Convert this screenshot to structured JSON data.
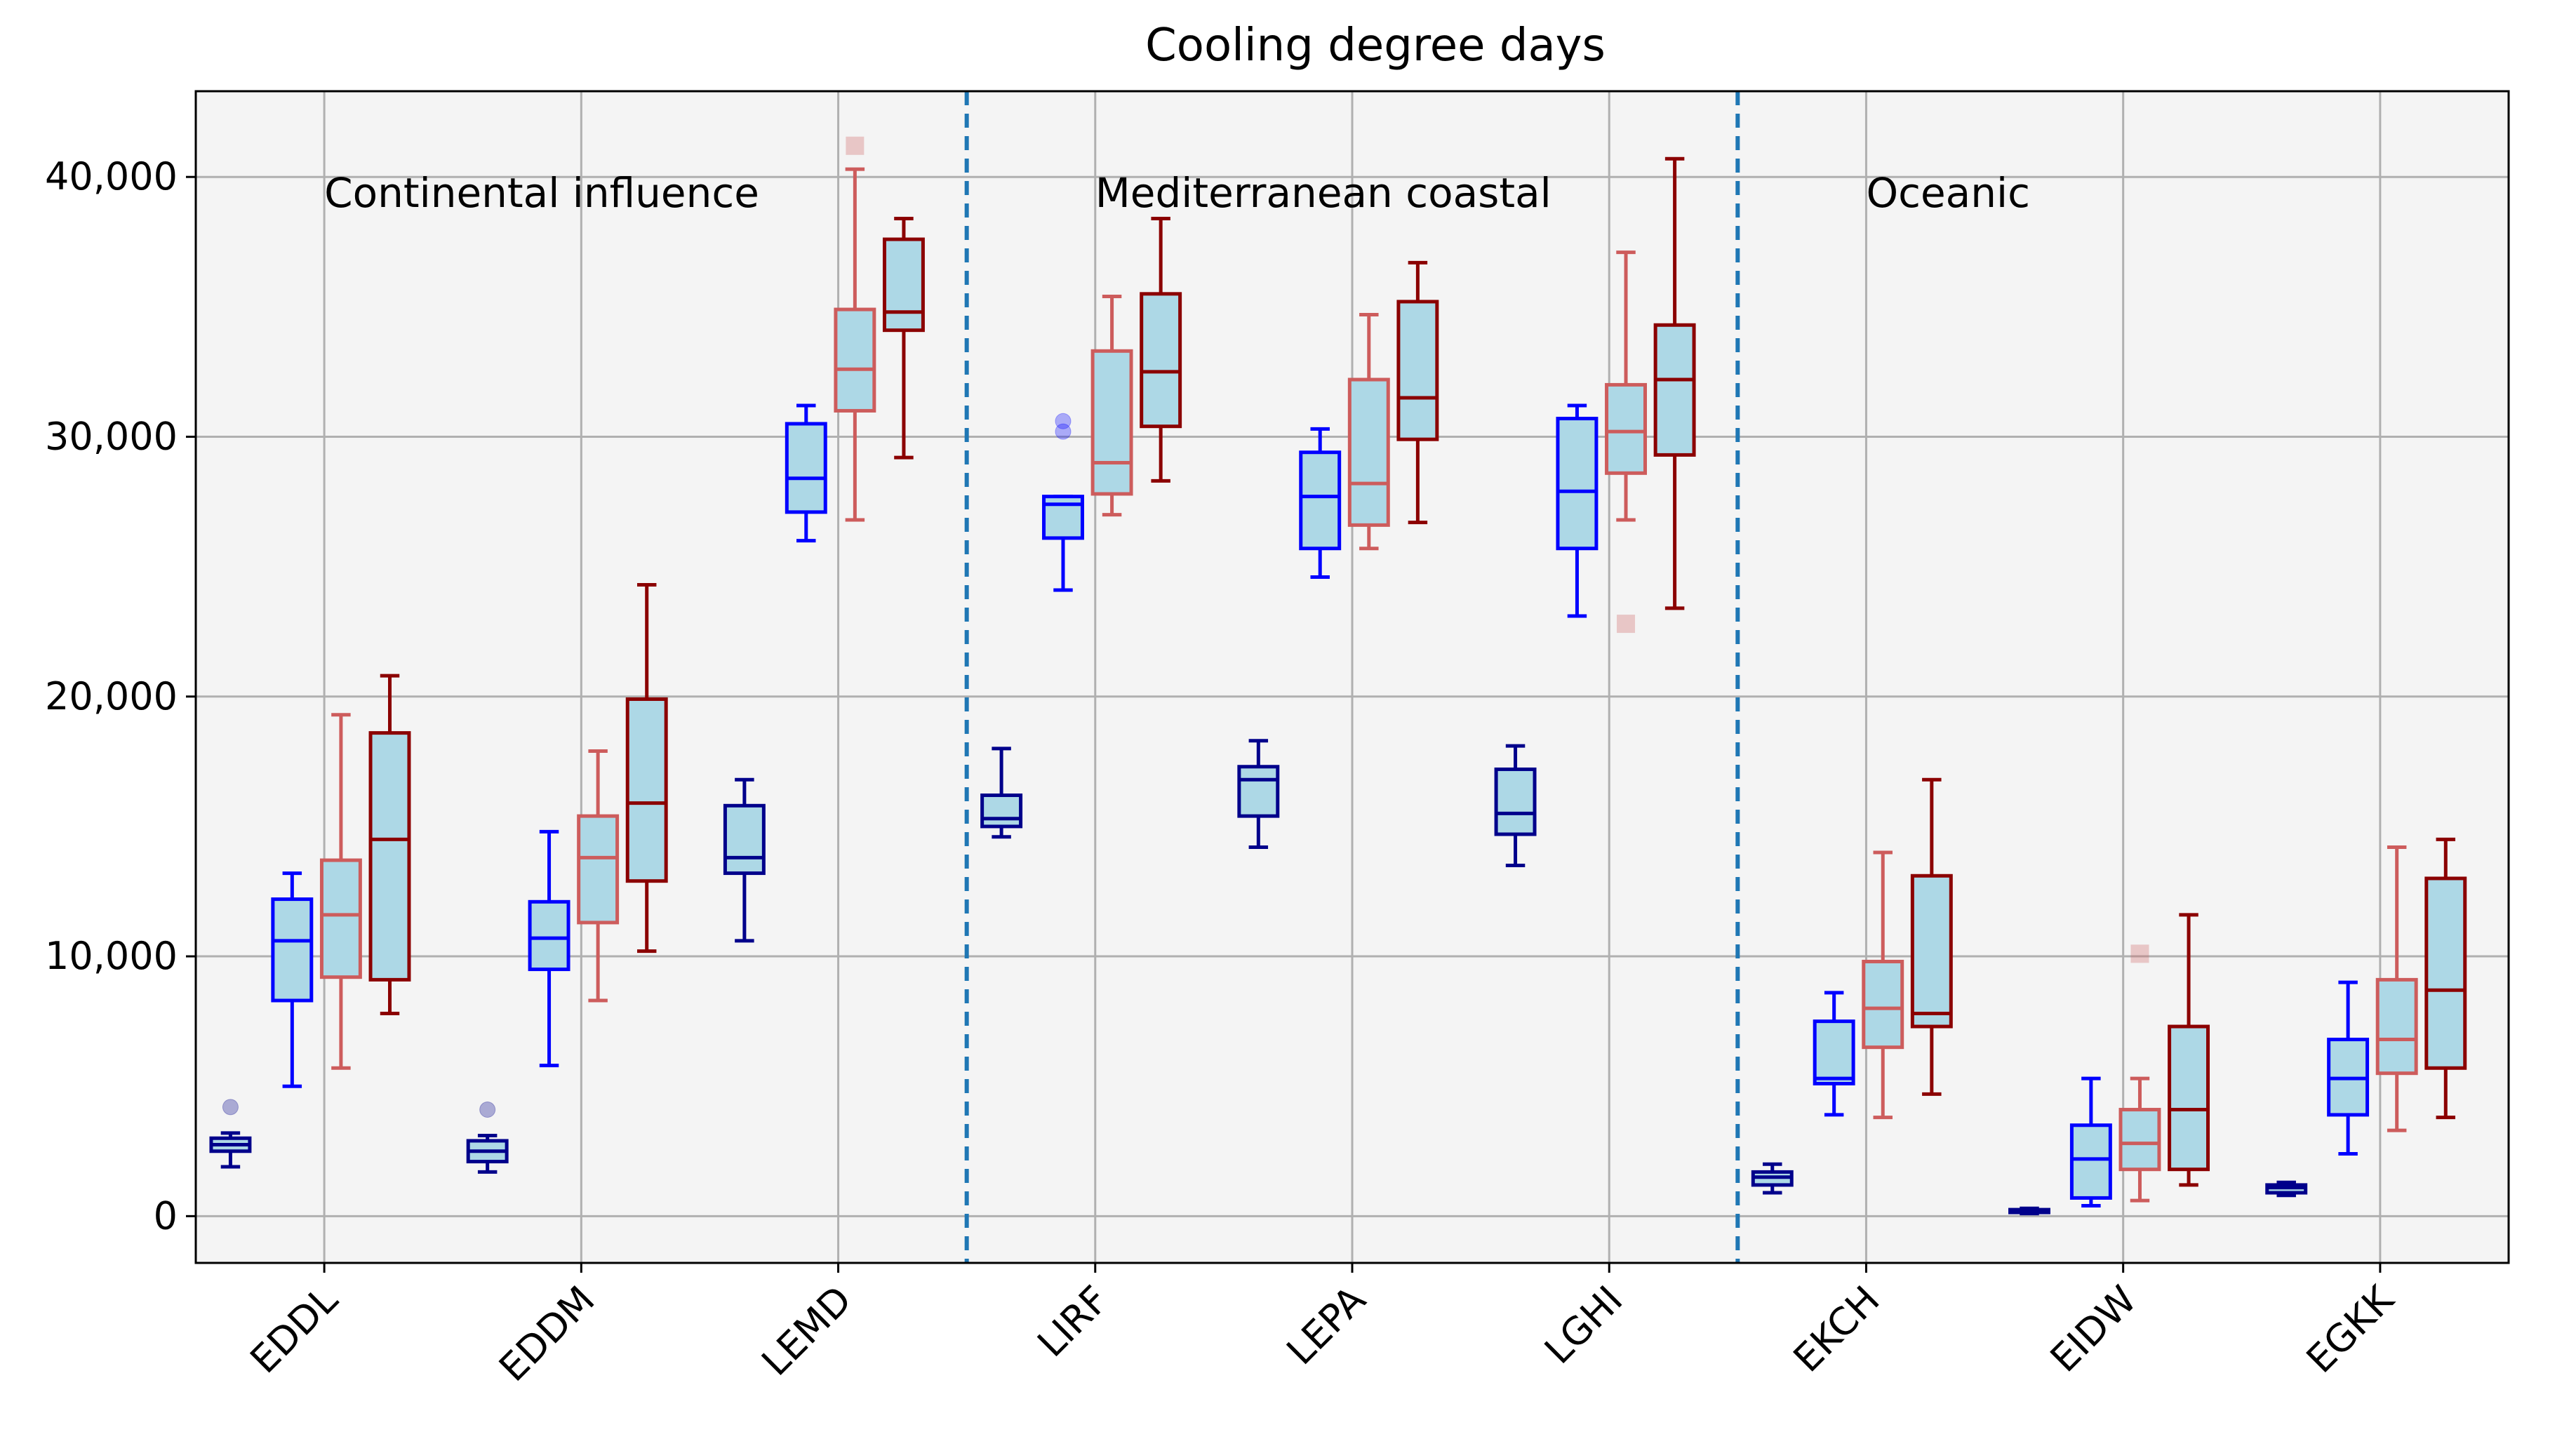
{
  "chart_data": {
    "type": "box",
    "title": "Cooling degree days",
    "xlabel": "",
    "ylabel": "",
    "ylim": [
      -1800,
      43300
    ],
    "yticks": [
      0,
      10000,
      20000,
      30000,
      40000
    ],
    "ytick_labels": [
      "0",
      "10,000",
      "20,000",
      "30,000",
      "40,000"
    ],
    "grid": true,
    "categories": [
      "EDDL",
      "EDDM",
      "LEMD",
      "LIRF",
      "LEPA",
      "LGHI",
      "EKCH",
      "EIDW",
      "EGKK"
    ],
    "regions": [
      {
        "label": "Continental influence",
        "start_index": 0,
        "end_index": 2
      },
      {
        "label": "Mediterranean coastal",
        "start_index": 3,
        "end_index": 5
      },
      {
        "label": "Oceanic",
        "start_index": 6,
        "end_index": 8
      }
    ],
    "region_separators_after_index": [
      2,
      5
    ],
    "series_styles": [
      {
        "color": "#00008b"
      },
      {
        "color": "#0000ff"
      },
      {
        "color": "#cd5c5c"
      },
      {
        "color": "#8b0000"
      }
    ],
    "box_fill": "#add8e6",
    "separator_color": "#1f77b4",
    "boxes": [
      [
        {
          "whislo": 1900,
          "q1": 2500,
          "med": 2750,
          "q3": 3000,
          "whishi": 3200,
          "fliers": [
            4200
          ]
        },
        {
          "whislo": 5000,
          "q1": 8300,
          "med": 10600,
          "q3": 12200,
          "whishi": 13200,
          "fliers": []
        },
        {
          "whislo": 5700,
          "q1": 9200,
          "med": 11600,
          "q3": 13700,
          "whishi": 19300,
          "fliers": []
        },
        {
          "whislo": 7800,
          "q1": 9100,
          "med": 14500,
          "q3": 18600,
          "whishi": 20800,
          "fliers": []
        }
      ],
      [
        {
          "whislo": 1700,
          "q1": 2100,
          "med": 2500,
          "q3": 2900,
          "whishi": 3100,
          "fliers": [
            4100
          ]
        },
        {
          "whislo": 5800,
          "q1": 9500,
          "med": 10700,
          "q3": 12100,
          "whishi": 14800,
          "fliers": []
        },
        {
          "whislo": 8300,
          "q1": 11300,
          "med": 13800,
          "q3": 15400,
          "whishi": 17900,
          "fliers": []
        },
        {
          "whislo": 10200,
          "q1": 12900,
          "med": 15900,
          "q3": 19900,
          "whishi": 24300,
          "fliers": []
        }
      ],
      [
        {
          "whislo": 10600,
          "q1": 13200,
          "med": 13800,
          "q3": 15800,
          "whishi": 16800,
          "fliers": []
        },
        {
          "whislo": 26000,
          "q1": 27100,
          "med": 28400,
          "q3": 30500,
          "whishi": 31200,
          "fliers": []
        },
        {
          "whislo": 26800,
          "q1": 31000,
          "med": 32600,
          "q3": 34900,
          "whishi": 40300,
          "fliers": [
            41200
          ]
        },
        {
          "whislo": 29200,
          "q1": 34100,
          "med": 34800,
          "q3": 37600,
          "whishi": 38400,
          "fliers": []
        }
      ],
      [
        {
          "whislo": 14600,
          "q1": 15000,
          "med": 15300,
          "q3": 16200,
          "whishi": 18000,
          "fliers": []
        },
        {
          "whislo": 24100,
          "q1": 26100,
          "med": 27400,
          "q3": 27700,
          "whishi": 27700,
          "fliers": [
            30200,
            30600
          ]
        },
        {
          "whislo": 27000,
          "q1": 27800,
          "med": 29000,
          "q3": 33300,
          "whishi": 35400,
          "fliers": []
        },
        {
          "whislo": 28300,
          "q1": 30400,
          "med": 32500,
          "q3": 35500,
          "whishi": 38400,
          "fliers": []
        }
      ],
      [
        {
          "whislo": 14200,
          "q1": 15400,
          "med": 16800,
          "q3": 17300,
          "whishi": 18300,
          "fliers": []
        },
        {
          "whislo": 24600,
          "q1": 25700,
          "med": 27700,
          "q3": 29400,
          "whishi": 30300,
          "fliers": []
        },
        {
          "whislo": 25700,
          "q1": 26600,
          "med": 28200,
          "q3": 32200,
          "whishi": 34700,
          "fliers": []
        },
        {
          "whislo": 26700,
          "q1": 29900,
          "med": 31500,
          "q3": 35200,
          "whishi": 36700,
          "fliers": []
        }
      ],
      [
        {
          "whislo": 13500,
          "q1": 14700,
          "med": 15500,
          "q3": 17200,
          "whishi": 18100,
          "fliers": []
        },
        {
          "whislo": 23100,
          "q1": 25700,
          "med": 27900,
          "q3": 30700,
          "whishi": 31200,
          "fliers": []
        },
        {
          "whislo": 26800,
          "q1": 28600,
          "med": 30200,
          "q3": 32000,
          "whishi": 37100,
          "fliers": [
            22800
          ]
        },
        {
          "whislo": 23400,
          "q1": 29300,
          "med": 32200,
          "q3": 34300,
          "whishi": 40700,
          "fliers": []
        }
      ],
      [
        {
          "whislo": 900,
          "q1": 1200,
          "med": 1500,
          "q3": 1700,
          "whishi": 2000,
          "fliers": []
        },
        {
          "whislo": 3900,
          "q1": 5100,
          "med": 5300,
          "q3": 7500,
          "whishi": 8600,
          "fliers": []
        },
        {
          "whislo": 3800,
          "q1": 6500,
          "med": 8000,
          "q3": 9800,
          "whishi": 14000,
          "fliers": []
        },
        {
          "whislo": 4700,
          "q1": 7300,
          "med": 7800,
          "q3": 13100,
          "whishi": 16800,
          "fliers": []
        }
      ],
      [
        {
          "whislo": 100,
          "q1": 150,
          "med": 200,
          "q3": 250,
          "whishi": 300,
          "fliers": []
        },
        {
          "whislo": 400,
          "q1": 700,
          "med": 2200,
          "q3": 3500,
          "whishi": 5300,
          "fliers": []
        },
        {
          "whislo": 600,
          "q1": 1800,
          "med": 2800,
          "q3": 4100,
          "whishi": 5300,
          "fliers": [
            10100
          ]
        },
        {
          "whislo": 1200,
          "q1": 1800,
          "med": 4100,
          "q3": 7300,
          "whishi": 11600,
          "fliers": []
        }
      ],
      [
        {
          "whislo": 800,
          "q1": 900,
          "med": 1100,
          "q3": 1200,
          "whishi": 1300,
          "fliers": []
        },
        {
          "whislo": 2400,
          "q1": 3900,
          "med": 5300,
          "q3": 6800,
          "whishi": 9000,
          "fliers": []
        },
        {
          "whislo": 3300,
          "q1": 5500,
          "med": 6800,
          "q3": 9100,
          "whishi": 14200,
          "fliers": []
        },
        {
          "whislo": 3800,
          "q1": 5700,
          "med": 8700,
          "q3": 13000,
          "whishi": 14500,
          "fliers": []
        }
      ]
    ]
  }
}
